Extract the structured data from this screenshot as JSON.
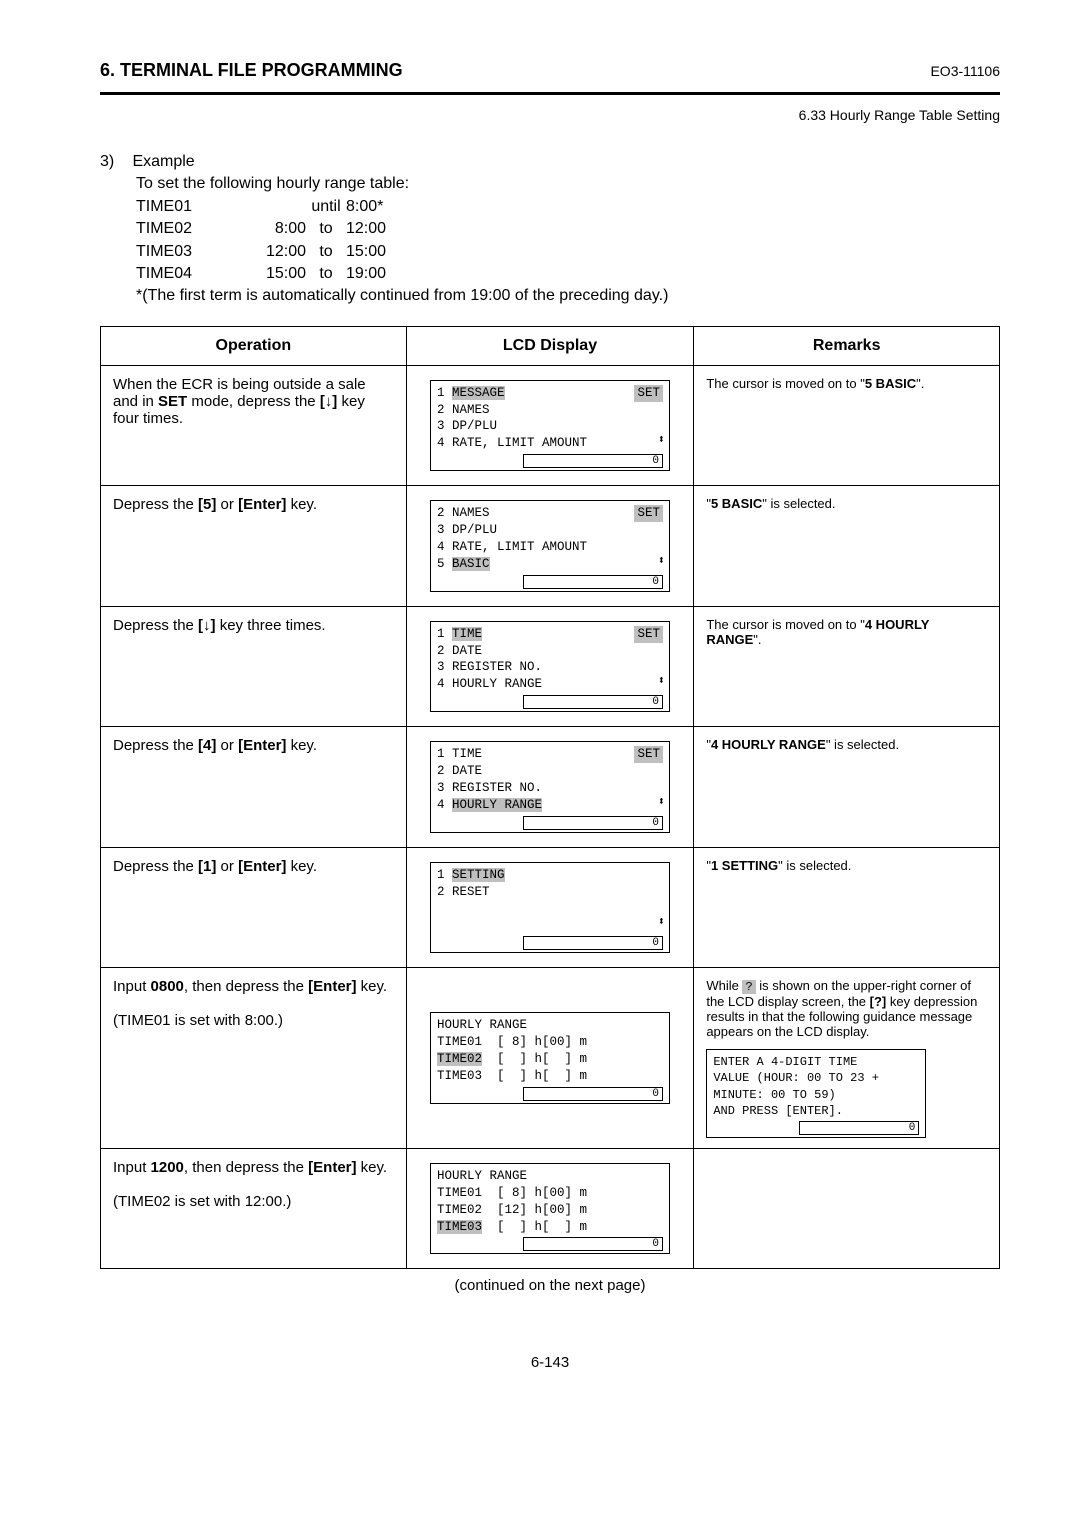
{
  "header": {
    "section_title": "6. TERMINAL FILE PROGRAMMING",
    "doc_code": "EO3-11106",
    "subheader": "6.33 Hourly Range Table Setting"
  },
  "example": {
    "number": "3)",
    "title": "Example",
    "intro": "To set the following hourly range table:",
    "rows": [
      {
        "label": "TIME01",
        "from": "",
        "to_word": "until",
        "to": "8:00*"
      },
      {
        "label": "TIME02",
        "from": "8:00",
        "to_word": "to",
        "to": "12:00"
      },
      {
        "label": "TIME03",
        "from": "12:00",
        "to_word": "to",
        "to": "15:00"
      },
      {
        "label": "TIME04",
        "from": "15:00",
        "to_word": "to",
        "to": "19:00"
      }
    ],
    "note": "*(The first term is automatically continued from 19:00 of the preceding day.)"
  },
  "table": {
    "headers": {
      "op": "Operation",
      "lcd": "LCD Display",
      "rem": "Remarks"
    }
  },
  "rows": [
    {
      "op_pre": "When the ECR is being outside a sale and in ",
      "op_b1": "SET",
      "op_mid": " mode, depress the ",
      "op_b2": "[↓]",
      "op_post": " key four times.",
      "lcd": {
        "lines": [
          {
            "text": "1 MESSAGE",
            "hl_start": 2,
            "hl_len": 7
          },
          {
            "text": "2 NAMES"
          },
          {
            "text": "3 DP/PLU"
          },
          {
            "text": "4 RATE, LIMIT AMOUNT"
          }
        ],
        "tag": "SET",
        "tag_hl": true,
        "arrows": "⬍",
        "input": "0"
      },
      "rem_pre": "The cursor is moved on to \"",
      "rem_b": "5 BASIC",
      "rem_post": "\"."
    },
    {
      "op_pre": "Depress the ",
      "op_b1": "[5]",
      "op_mid": " or ",
      "op_b2": "[Enter]",
      "op_post": " key.",
      "lcd": {
        "lines": [
          {
            "text": "2 NAMES"
          },
          {
            "text": "3 DP/PLU"
          },
          {
            "text": "4 RATE, LIMIT AMOUNT"
          },
          {
            "text": "5 BASIC",
            "hl_start": 2,
            "hl_len": 5
          }
        ],
        "tag": "SET",
        "tag_hl": true,
        "arrows": "⬍",
        "input": "0"
      },
      "rem_pre": "\"",
      "rem_b": "5 BASIC",
      "rem_post": "\" is selected."
    },
    {
      "op_pre": "Depress the ",
      "op_b1": "[↓]",
      "op_mid": "",
      "op_b2": "",
      "op_post": " key three times.",
      "lcd": {
        "lines": [
          {
            "text": "1 TIME",
            "hl_start": 2,
            "hl_len": 4
          },
          {
            "text": "2 DATE"
          },
          {
            "text": "3 REGISTER NO."
          },
          {
            "text": "4 HOURLY RANGE"
          }
        ],
        "tag": "SET",
        "tag_hl": true,
        "arrows": "⬍",
        "input": "0"
      },
      "rem_pre": "The cursor is moved on to \"",
      "rem_b": "4 HOURLY RANGE",
      "rem_post": "\"."
    },
    {
      "op_pre": "Depress the ",
      "op_b1": "[4]",
      "op_mid": " or ",
      "op_b2": "[Enter]",
      "op_post": " key.",
      "lcd": {
        "lines": [
          {
            "text": "1 TIME"
          },
          {
            "text": "2 DATE"
          },
          {
            "text": "3 REGISTER NO."
          },
          {
            "text": "4 HOURLY RANGE",
            "hl_start": 2,
            "hl_len": 12
          }
        ],
        "tag": "SET",
        "tag_hl": true,
        "arrows": "⬍",
        "input": "0"
      },
      "rem_pre": "\"",
      "rem_b": "4 HOURLY RANGE",
      "rem_post": "\" is selected."
    },
    {
      "op_pre": "Depress the ",
      "op_b1": "[1]",
      "op_mid": " or ",
      "op_b2": "[Enter]",
      "op_post": " key.",
      "lcd": {
        "lines": [
          {
            "text": "1 SETTING",
            "hl_start": 2,
            "hl_len": 7
          },
          {
            "text": "2 RESET"
          },
          {
            "text": " "
          },
          {
            "text": " "
          }
        ],
        "tag": "",
        "tag_hl": false,
        "arrows": "⬍",
        "input": "0"
      },
      "rem_pre": "\"",
      "rem_b": "1 SETTING",
      "rem_post": "\" is selected."
    }
  ],
  "row6": {
    "op_l1_pre": "Input ",
    "op_l1_b1": "0800",
    "op_l1_mid": ", then depress the ",
    "op_l1_b2": "[Enter]",
    "op_l1_post": " key.",
    "op_l2": "(TIME01 is set with 8:00.)",
    "lcd": {
      "title": "HOURLY RANGE",
      "lines": [
        {
          "label": "TIME01",
          "rest": "  [ 8] h[00] m"
        },
        {
          "label": "TIME02",
          "rest": "  [  ] h[  ] m",
          "hl_label": true
        },
        {
          "label": "TIME03",
          "rest": "  [  ] h[  ] m"
        }
      ],
      "input": "0"
    },
    "rem_p1_a": "While ",
    "rem_p1_q": "?",
    "rem_p1_b": " is shown on the upper-right corner of the LCD display screen, the ",
    "rem_p1_b2": "[?]",
    "rem_p1_c": " key depression results in that the following guidance message appears on the LCD display.",
    "guide": {
      "l1": "ENTER A 4-DIGIT TIME",
      "l2": "VALUE (HOUR: 00 TO 23 +",
      "l3": "MINUTE: 00 TO 59)",
      "l4": "AND PRESS [ENTER].",
      "input": "0"
    }
  },
  "row7": {
    "op_l1_pre": "Input ",
    "op_l1_b1": "1200",
    "op_l1_mid": ", then depress the ",
    "op_l1_b2": "[Enter]",
    "op_l1_post": " key.",
    "op_l2": "(TIME02 is set with 12:00.)",
    "lcd": {
      "title": "HOURLY RANGE",
      "lines": [
        {
          "label": "TIME01",
          "rest": "  [ 8] h[00] m"
        },
        {
          "label": "TIME02",
          "rest": "  [12] h[00] m"
        },
        {
          "label": "TIME03",
          "rest": "  [  ] h[  ] m",
          "hl_label": true
        }
      ],
      "input": "0"
    }
  },
  "continued": "(continued on the next page)",
  "pagenum": "6-143"
}
